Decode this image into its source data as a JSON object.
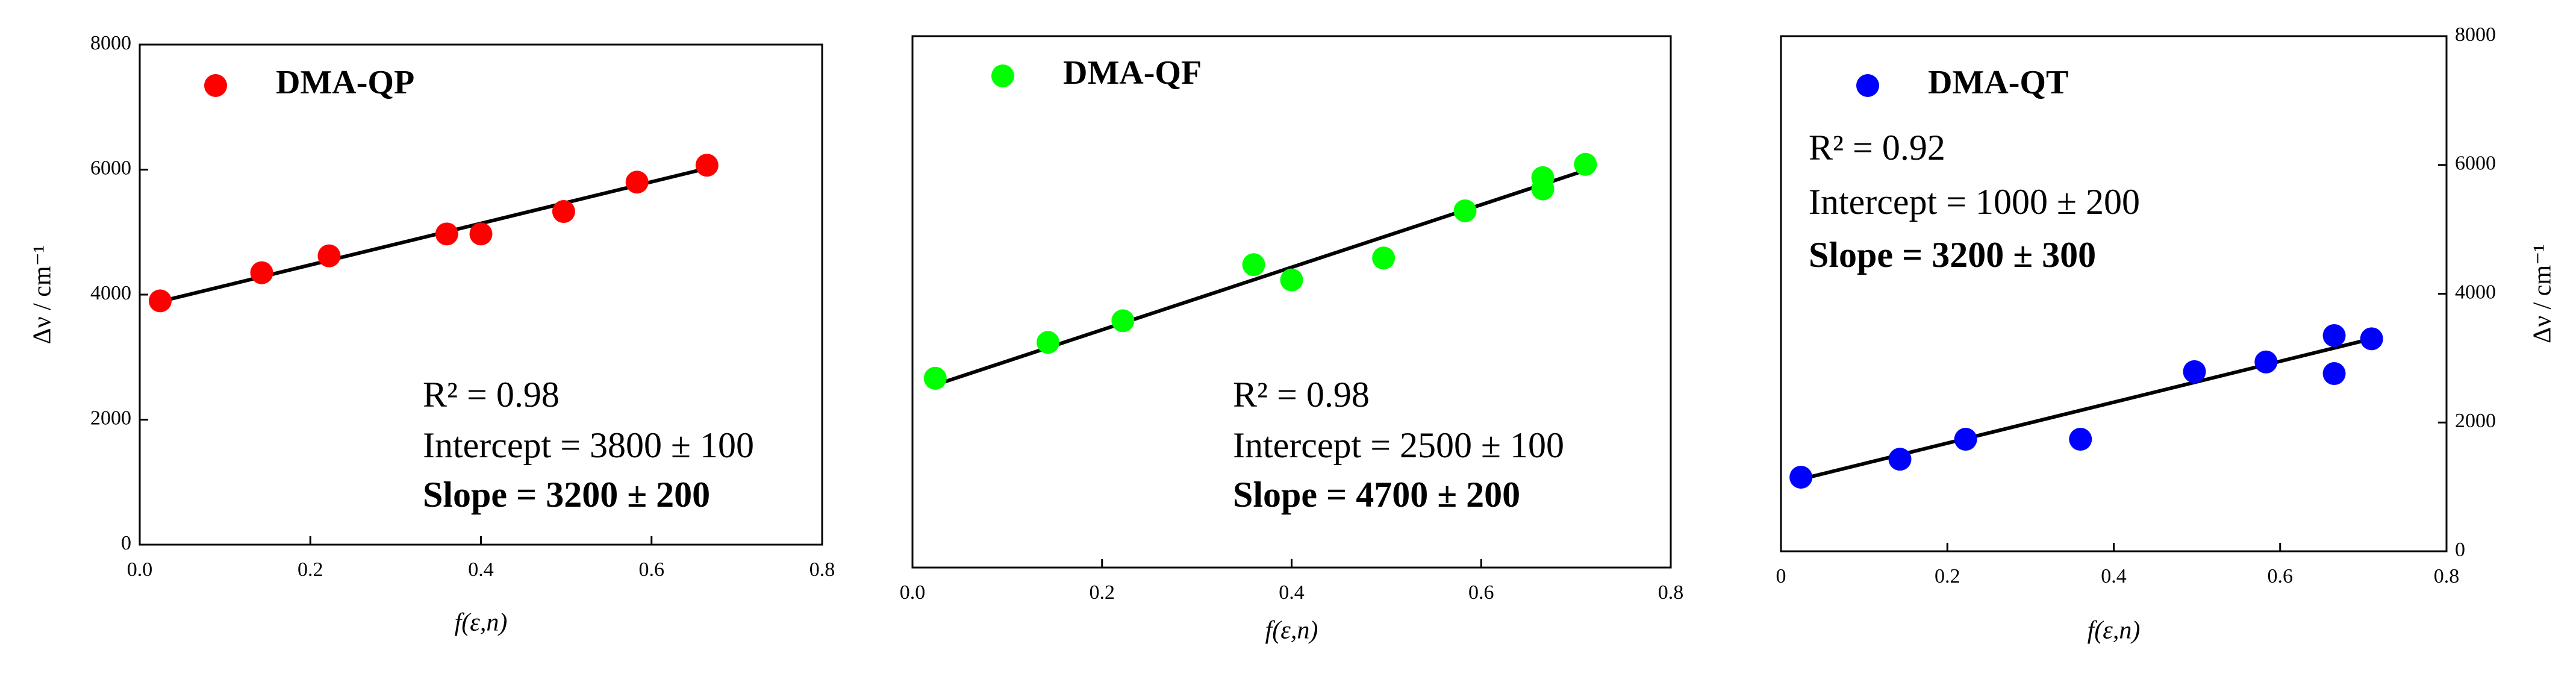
{
  "chart_data": [
    {
      "type": "scatter",
      "x_label": "f(ε,n)",
      "y_label": "Δν / cm⁻¹",
      "y_axis_side": "left",
      "xlim": [
        0,
        0.8
      ],
      "xticks": [
        {
          "value": 0,
          "label": "0.0"
        },
        0.2,
        0.4,
        0.6,
        0.8
      ],
      "ylim": [
        0,
        8000
      ],
      "yticks": [
        0,
        2000,
        4000,
        6000,
        8000
      ],
      "legend": "upper left",
      "series": [
        {
          "name": "DMA-QP",
          "color": "#ff0000",
          "x": [
            0.024,
            0.143,
            0.222,
            0.36,
            0.4,
            0.497,
            0.583,
            0.665
          ],
          "values": [
            3900,
            4350,
            4620,
            4970,
            4970,
            5330,
            5800,
            6070
          ]
        }
      ],
      "fit": {
        "color": "#000000",
        "x": [
          0.024,
          0.665
        ],
        "values": [
          3890,
          6020
        ]
      },
      "annotations": [
        "R² = 0.98",
        "Intercept = 3800 ± 100",
        "Slope = 3200 ± 200"
      ]
    },
    {
      "type": "scatter",
      "x_label": "f(ε,n)",
      "xlim": [
        0,
        0.8
      ],
      "xticks": [
        {
          "value": 0,
          "label": "0.0"
        },
        0.2,
        0.4,
        0.6,
        0.8
      ],
      "ylim": [
        0,
        8000
      ],
      "legend": "upper left",
      "series": [
        {
          "name": "DMA-QF",
          "color": "#00ff00",
          "x": [
            0.024,
            0.143,
            0.222,
            0.36,
            0.4,
            0.497,
            0.583,
            0.665,
            0.665,
            0.71
          ],
          "values": [
            2850,
            3390,
            3715,
            4560,
            4330,
            4660,
            5370,
            5870,
            5700,
            6070
          ]
        }
      ],
      "fit": {
        "color": "#000000",
        "x": [
          0.024,
          0.71
        ],
        "values": [
          2750,
          5980
        ]
      },
      "annotations": [
        "R² = 0.98",
        "Intercept = 2500 ± 100",
        "Slope = 4700 ± 200"
      ]
    },
    {
      "type": "scatter",
      "x_label": "f(ε,n)",
      "y_label": "Δν / cm⁻¹",
      "y_axis_side": "right",
      "xlim": [
        0,
        0.8
      ],
      "xticks": [
        0,
        0.2,
        0.4,
        0.6,
        0.8
      ],
      "ylim": [
        0,
        8000
      ],
      "yticks": [
        0,
        2000,
        4000,
        6000,
        8000
      ],
      "legend": "upper left",
      "series": [
        {
          "name": "DMA-QT",
          "color": "#0000ff",
          "x": [
            0.024,
            0.143,
            0.222,
            0.36,
            0.497,
            0.583,
            0.665,
            0.665,
            0.71
          ],
          "values": [
            1150,
            1430,
            1740,
            1740,
            2790,
            2940,
            3350,
            2760,
            3300
          ]
        }
      ],
      "fit": {
        "color": "#000000",
        "x": [
          0.024,
          0.71
        ],
        "values": [
          1120,
          3300
        ]
      },
      "annotations": [
        "R² = 0.92",
        "Intercept = 1000 ± 200",
        "Slope = 3200 ± 300"
      ]
    }
  ]
}
